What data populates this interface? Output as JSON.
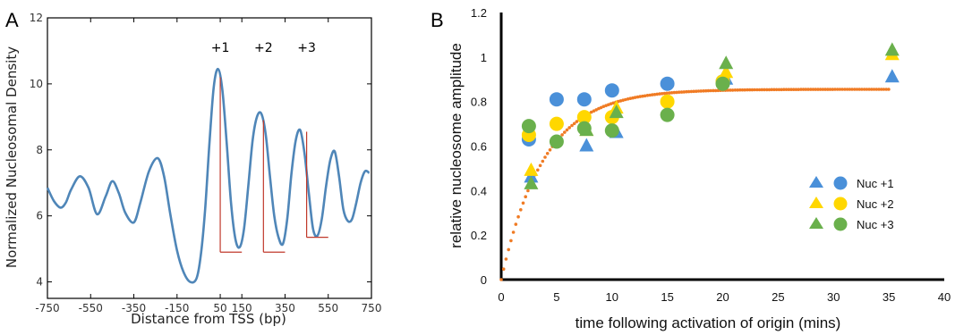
{
  "panels": {
    "a": "A",
    "b": "B"
  },
  "colors": {
    "profile_line": "#4f86b8",
    "marker_line": "#c0392b",
    "nuc1": "#4a90d9",
    "nuc2": "#ffd700",
    "nuc3": "#6ab04c",
    "fit": "#f07b24"
  },
  "chart_data": [
    {
      "type": "line",
      "xlabel": "Distance from TSS (bp)",
      "ylabel": "Normalized Nucleosomal Density",
      "xlim": [
        -750,
        750
      ],
      "ylim": [
        3.5,
        12
      ],
      "xticks": [
        -750,
        -550,
        -350,
        -150,
        50,
        150,
        350,
        550,
        750
      ],
      "xtick_labels": [
        "-750",
        "-550",
        "-350",
        "-150",
        "50",
        "150",
        "350",
        "550",
        "750"
      ],
      "yticks": [
        4,
        6,
        8,
        10,
        12
      ],
      "ytick_labels": [
        "4",
        "6",
        "8",
        "10",
        "12"
      ],
      "grid": false,
      "series": [
        {
          "x": [
            -750,
            -720,
            -690,
            -665,
            -640,
            -600,
            -560,
            -520,
            -480,
            -450,
            -420,
            -390,
            -350,
            -320,
            -280,
            -240,
            -210,
            -180,
            -150,
            -120,
            -90,
            -60,
            -40,
            -20,
            0,
            20,
            40,
            60,
            80,
            100,
            120,
            140,
            160,
            180,
            200,
            220,
            240,
            260,
            280,
            300,
            320,
            340,
            360,
            380,
            400,
            420,
            440,
            460,
            480,
            500,
            520,
            540,
            560,
            580,
            600,
            620,
            640,
            660,
            680,
            700,
            720,
            740
          ],
          "y": [
            6.85,
            6.45,
            6.25,
            6.4,
            6.8,
            7.2,
            6.85,
            6.05,
            6.6,
            7.05,
            6.7,
            6.1,
            5.8,
            6.4,
            7.35,
            7.75,
            7.2,
            6.0,
            4.95,
            4.3,
            4.0,
            4.1,
            4.8,
            6.2,
            8.2,
            9.9,
            10.45,
            9.8,
            8.2,
            6.4,
            5.3,
            5.05,
            5.6,
            6.9,
            8.3,
            9.0,
            9.1,
            8.5,
            7.2,
            6.0,
            5.35,
            5.15,
            5.9,
            7.3,
            8.3,
            8.6,
            7.9,
            6.7,
            5.6,
            5.4,
            5.9,
            6.9,
            7.7,
            7.95,
            7.2,
            6.2,
            5.85,
            5.9,
            6.4,
            7.0,
            7.35,
            7.3
          ]
        }
      ],
      "annotations": [
        {
          "label": "+1",
          "x": 50,
          "peak": 10.2,
          "trough": 4.9,
          "x_end": 150
        },
        {
          "label": "+2",
          "x": 250,
          "peak": 8.9,
          "trough": 4.9,
          "x_end": 350
        },
        {
          "label": "+3",
          "x": 450,
          "peak": 8.55,
          "trough": 5.35,
          "x_end": 550
        }
      ]
    },
    {
      "type": "scatter",
      "xlabel": "time following activation of origin (mins)",
      "ylabel": "relative nucleosome amplitude",
      "xlim": [
        0,
        40
      ],
      "ylim": [
        0,
        1.2
      ],
      "xticks": [
        0,
        5,
        10,
        15,
        20,
        25,
        30,
        35,
        40
      ],
      "xtick_labels": [
        "0",
        "5",
        "10",
        "15",
        "20",
        "25",
        "30",
        "35",
        "40"
      ],
      "yticks": [
        0,
        0.2,
        0.4,
        0.6,
        0.8,
        1,
        1.2
      ],
      "ytick_labels": [
        "0",
        "0.2",
        "0.4",
        "0.6",
        "0.8",
        "1",
        "1.2"
      ],
      "grid": false,
      "legend_position": "right",
      "legend": [
        "Nuc +1",
        "Nuc +2",
        "Nuc +3"
      ],
      "series": [
        {
          "name": "Nuc +1",
          "marker": "triangle",
          "color_key": "nuc1",
          "x": [
            2.7,
            7.7,
            10.4,
            20.3,
            35.3
          ],
          "y": [
            0.46,
            0.6,
            0.66,
            0.9,
            0.91
          ]
        },
        {
          "name": "Nuc +1",
          "marker": "circle",
          "color_key": "nuc1",
          "x": [
            2.5,
            5,
            7.5,
            10,
            15,
            20
          ],
          "y": [
            0.63,
            0.81,
            0.81,
            0.85,
            0.88,
            0.89
          ]
        },
        {
          "name": "Nuc +2",
          "marker": "triangle",
          "color_key": "nuc2",
          "x": [
            2.7,
            7.7,
            10.4,
            20.3,
            35.3
          ],
          "y": [
            0.49,
            0.67,
            0.77,
            0.93,
            1.01
          ]
        },
        {
          "name": "Nuc +2",
          "marker": "circle",
          "color_key": "nuc2",
          "x": [
            2.5,
            5,
            7.5,
            10,
            15,
            20
          ],
          "y": [
            0.65,
            0.7,
            0.73,
            0.73,
            0.8,
            0.89
          ]
        },
        {
          "name": "Nuc +3",
          "marker": "triangle",
          "color_key": "nuc3",
          "x": [
            2.7,
            7.7,
            10.4,
            20.3,
            35.3
          ],
          "y": [
            0.43,
            0.67,
            0.75,
            0.97,
            1.03
          ]
        },
        {
          "name": "Nuc +3",
          "marker": "circle",
          "color_key": "nuc3",
          "x": [
            2.5,
            5,
            7.5,
            10,
            15,
            20
          ],
          "y": [
            0.69,
            0.62,
            0.68,
            0.67,
            0.74,
            0.88
          ]
        }
      ],
      "fit": {
        "plateau": 0.855,
        "rate": 0.26,
        "x_range": [
          0,
          35
        ]
      }
    }
  ]
}
